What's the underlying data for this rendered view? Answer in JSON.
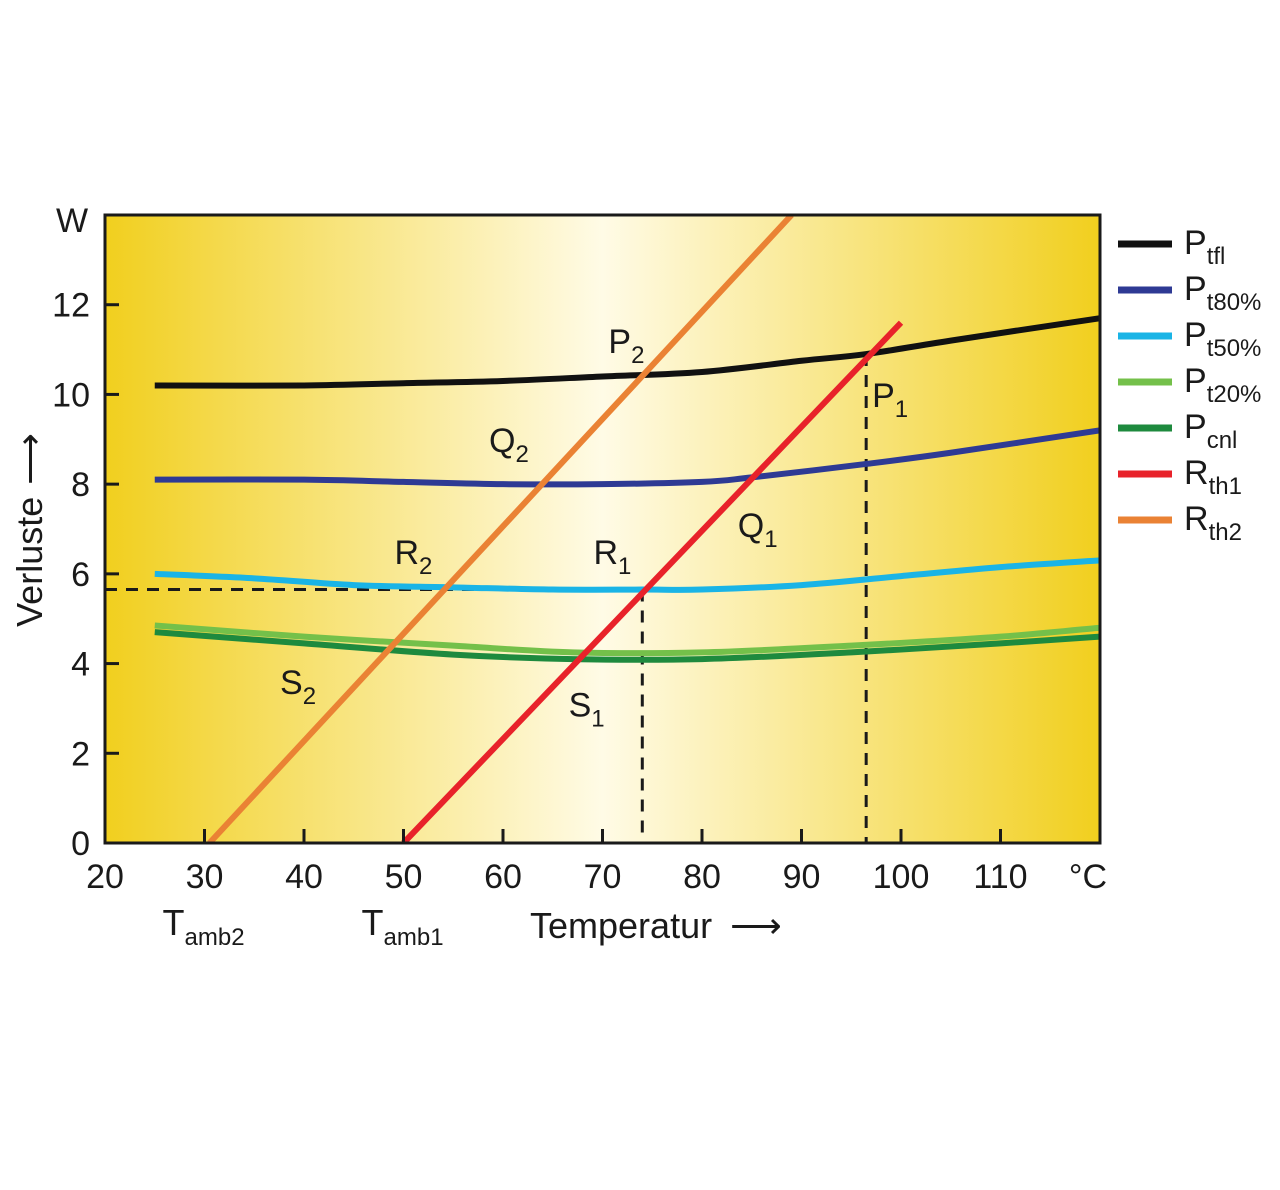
{
  "chart_data": {
    "type": "line",
    "xlabel": "Temperatur",
    "ylabel": "Verluste",
    "x_unit": "°C",
    "y_unit": "W",
    "xlim": [
      20,
      120
    ],
    "ylim": [
      0,
      14
    ],
    "x_ticks": [
      "20",
      "30",
      "40",
      "50",
      "60",
      "70",
      "80",
      "90",
      "100",
      "110"
    ],
    "y_ticks": [
      "0",
      "2",
      "4",
      "6",
      "8",
      "10",
      "12"
    ],
    "arrow_glyph": "⟶",
    "x_extra_labels": [
      {
        "main": "T",
        "sub": "amb2",
        "x": 30
      },
      {
        "main": "T",
        "sub": "amb1",
        "x": 50
      }
    ],
    "series": [
      {
        "name": "P",
        "sub": "tfl",
        "color": "#111111",
        "x": [
          25,
          40,
          50,
          60,
          70,
          80,
          90,
          96.5,
          105,
          120
        ],
        "y": [
          10.2,
          10.2,
          10.25,
          10.3,
          10.4,
          10.5,
          10.75,
          10.9,
          11.2,
          11.7
        ]
      },
      {
        "name": "P",
        "sub": "t80%",
        "color": "#2e3a94",
        "x": [
          25,
          40,
          50,
          60,
          70,
          80,
          85,
          96.5,
          105,
          120
        ],
        "y": [
          8.1,
          8.1,
          8.05,
          8.0,
          8.0,
          8.05,
          8.15,
          8.45,
          8.7,
          9.2
        ]
      },
      {
        "name": "P",
        "sub": "t50%",
        "color": "#1ab4e6",
        "x": [
          25,
          35,
          45,
          55,
          65,
          74,
          80,
          90,
          100,
          110,
          120
        ],
        "y": [
          6.0,
          5.9,
          5.75,
          5.7,
          5.65,
          5.65,
          5.65,
          5.75,
          5.95,
          6.15,
          6.3
        ]
      },
      {
        "name": "P",
        "sub": "t20%",
        "color": "#74c04a",
        "x": [
          25,
          40,
          55,
          67,
          80,
          95,
          110,
          120
        ],
        "y": [
          4.85,
          4.6,
          4.4,
          4.25,
          4.25,
          4.4,
          4.6,
          4.8
        ]
      },
      {
        "name": "P",
        "sub": "cnl",
        "color": "#1e8a3e",
        "x": [
          25,
          40,
          55,
          67,
          80,
          95,
          110,
          120
        ],
        "y": [
          4.7,
          4.45,
          4.2,
          4.1,
          4.1,
          4.25,
          4.45,
          4.6
        ]
      },
      {
        "name": "R",
        "sub": "th1",
        "color": "#e8222a",
        "x": [
          50,
          100
        ],
        "y": [
          0,
          11.6
        ]
      },
      {
        "name": "R",
        "sub": "th2",
        "color": "#ea8234",
        "x": [
          30.5,
          89
        ],
        "y": [
          0,
          14
        ]
      }
    ],
    "reference_lines": [
      {
        "points": [
          [
            20,
            5.65
          ],
          [
            74,
            5.65
          ]
        ]
      },
      {
        "points": [
          [
            74,
            5.65
          ],
          [
            74,
            0
          ]
        ]
      },
      {
        "points": [
          [
            96.5,
            10.9
          ],
          [
            96.5,
            0
          ]
        ]
      }
    ],
    "annotations": [
      {
        "main": "P",
        "sub": "2",
        "x": 72,
        "y": 11.1
      },
      {
        "main": "P",
        "sub": "1",
        "x": 98.5,
        "y": 9.9
      },
      {
        "main": "Q",
        "sub": "2",
        "x": 60,
        "y": 8.9
      },
      {
        "main": "Q",
        "sub": "1",
        "x": 85,
        "y": 7.0
      },
      {
        "main": "R",
        "sub": "2",
        "x": 50.5,
        "y": 6.4
      },
      {
        "main": "R",
        "sub": "1",
        "x": 70.5,
        "y": 6.4
      },
      {
        "main": "S",
        "sub": "2",
        "x": 39,
        "y": 3.5
      },
      {
        "main": "S",
        "sub": "1",
        "x": 68,
        "y": 3.0
      }
    ],
    "legend_position": "right",
    "grid": false
  }
}
